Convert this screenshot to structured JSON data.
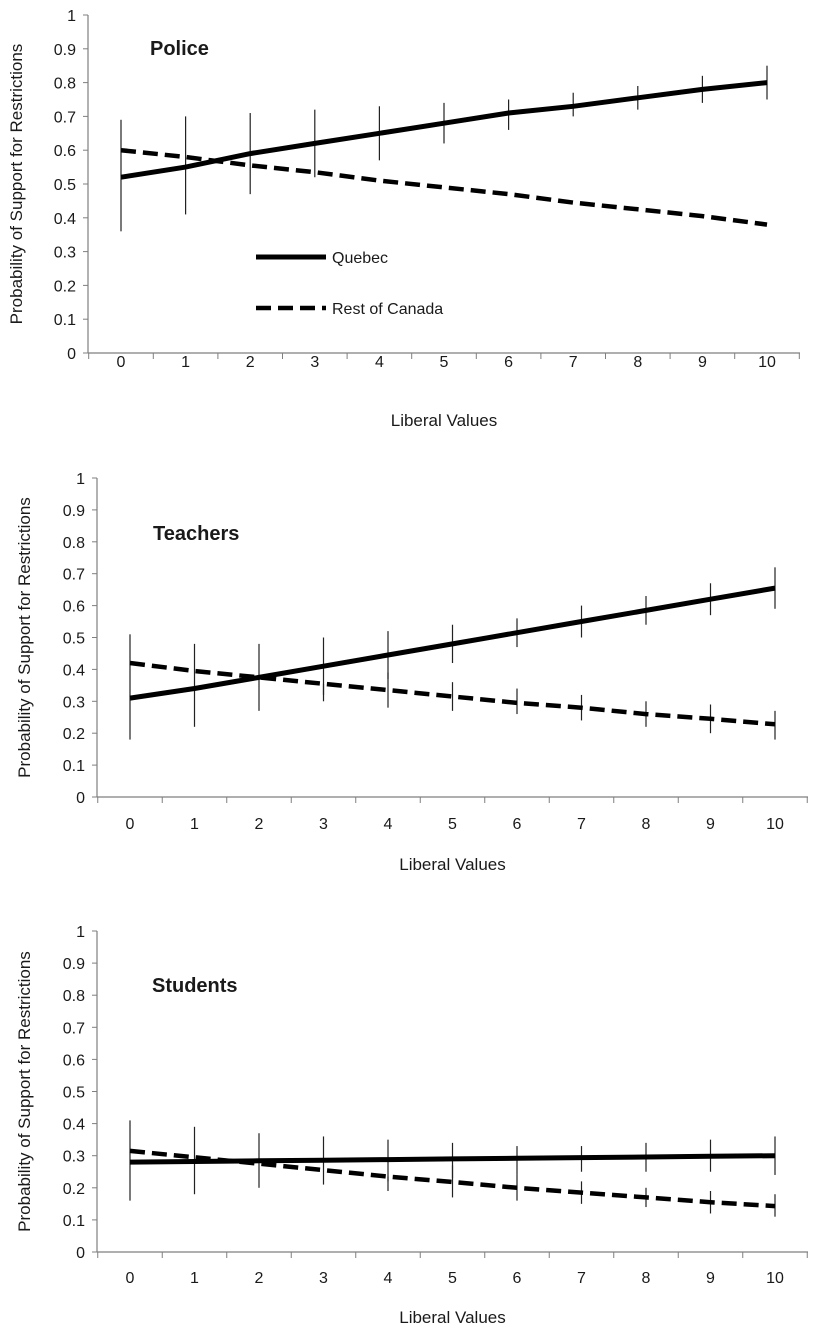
{
  "chart_data": [
    {
      "type": "line",
      "title": "Police",
      "xlabel": "Liberal Values",
      "ylabel": "Probability of Support for Restrictions",
      "x": [
        0,
        1,
        2,
        3,
        4,
        5,
        6,
        7,
        8,
        9,
        10
      ],
      "ylim": [
        0,
        1
      ],
      "yticks": [
        "0",
        "0.1",
        "0.2",
        "0.3",
        "0.4",
        "0.5",
        "0.6",
        "0.7",
        "0.8",
        "0.9",
        "1"
      ],
      "xticks": [
        "0",
        "1",
        "2",
        "3",
        "4",
        "5",
        "6",
        "7",
        "8",
        "9",
        "10"
      ],
      "grid": false,
      "legend_position": "center-left",
      "series": [
        {
          "name": "Quebec",
          "style": "solid",
          "values": [
            0.52,
            0.55,
            0.59,
            0.62,
            0.65,
            0.68,
            0.71,
            0.73,
            0.755,
            0.78,
            0.8
          ],
          "error_low": [
            0.36,
            0.41,
            0.47,
            0.52,
            0.57,
            0.62,
            0.66,
            0.7,
            0.72,
            0.74,
            0.75
          ],
          "error_high": [
            0.69,
            0.7,
            0.71,
            0.72,
            0.73,
            0.74,
            0.75,
            0.77,
            0.79,
            0.82,
            0.85
          ]
        },
        {
          "name": "Rest of Canada",
          "style": "dashed",
          "values": [
            0.6,
            0.58,
            0.555,
            0.535,
            0.51,
            0.49,
            0.47,
            0.445,
            0.425,
            0.405,
            0.38
          ],
          "error_low": null,
          "error_high": null
        }
      ]
    },
    {
      "type": "line",
      "title": "Teachers",
      "xlabel": "Liberal Values",
      "ylabel": "Probability of Support for Restrictions",
      "x": [
        0,
        1,
        2,
        3,
        4,
        5,
        6,
        7,
        8,
        9,
        10
      ],
      "ylim": [
        0,
        1
      ],
      "yticks": [
        "0",
        "0.1",
        "0.2",
        "0.3",
        "0.4",
        "0.5",
        "0.6",
        "0.7",
        "0.8",
        "0.9",
        "1"
      ],
      "xticks": [
        "0",
        "1",
        "2",
        "3",
        "4",
        "5",
        "6",
        "7",
        "8",
        "9",
        "10"
      ],
      "grid": false,
      "series": [
        {
          "name": "Quebec",
          "style": "solid",
          "values": [
            0.31,
            0.34,
            0.375,
            0.41,
            0.445,
            0.48,
            0.515,
            0.55,
            0.585,
            0.62,
            0.655
          ],
          "error_low": [
            0.18,
            0.22,
            0.27,
            0.32,
            0.37,
            0.42,
            0.47,
            0.5,
            0.54,
            0.57,
            0.59
          ],
          "error_high": [
            0.51,
            0.48,
            0.48,
            0.5,
            0.52,
            0.54,
            0.56,
            0.6,
            0.63,
            0.67,
            0.72
          ]
        },
        {
          "name": "Rest of Canada",
          "style": "dashed",
          "values": [
            0.42,
            0.395,
            0.375,
            0.355,
            0.335,
            0.315,
            0.295,
            0.28,
            0.26,
            0.245,
            0.228
          ],
          "error_low": [
            null,
            null,
            null,
            0.3,
            0.28,
            0.27,
            0.26,
            0.24,
            0.22,
            0.2,
            0.18
          ],
          "error_high": [
            null,
            null,
            null,
            null,
            0.39,
            0.36,
            0.34,
            0.32,
            0.3,
            0.29,
            0.27
          ]
        }
      ]
    },
    {
      "type": "line",
      "title": "Students",
      "xlabel": "Liberal Values",
      "ylabel": "Probability of Support for Restrictions",
      "x": [
        0,
        1,
        2,
        3,
        4,
        5,
        6,
        7,
        8,
        9,
        10
      ],
      "ylim": [
        0,
        1
      ],
      "yticks": [
        "0",
        "0.1",
        "0.2",
        "0.3",
        "0.4",
        "0.5",
        "0.6",
        "0.7",
        "0.8",
        "0.9",
        "1"
      ],
      "xticks": [
        "0",
        "1",
        "2",
        "3",
        "4",
        "5",
        "6",
        "7",
        "8",
        "9",
        "10"
      ],
      "grid": false,
      "series": [
        {
          "name": "Quebec",
          "style": "solid",
          "values": [
            0.28,
            0.282,
            0.284,
            0.286,
            0.288,
            0.29,
            0.292,
            0.294,
            0.296,
            0.298,
            0.3
          ],
          "error_low": [
            0.16,
            0.18,
            0.2,
            0.21,
            0.22,
            0.23,
            0.24,
            0.25,
            0.25,
            0.25,
            0.24
          ],
          "error_high": [
            0.41,
            0.39,
            0.37,
            0.36,
            0.35,
            0.34,
            0.33,
            0.33,
            0.34,
            0.35,
            0.36
          ]
        },
        {
          "name": "Rest of Canada",
          "style": "dashed",
          "values": [
            0.315,
            0.295,
            0.275,
            0.255,
            0.235,
            0.218,
            0.2,
            0.185,
            0.17,
            0.155,
            0.143
          ],
          "error_low": [
            null,
            null,
            null,
            null,
            0.19,
            0.17,
            0.16,
            0.15,
            0.14,
            0.12,
            0.11
          ],
          "error_high": [
            null,
            null,
            null,
            null,
            null,
            0.27,
            0.24,
            0.22,
            0.2,
            0.19,
            0.18
          ]
        }
      ]
    }
  ]
}
